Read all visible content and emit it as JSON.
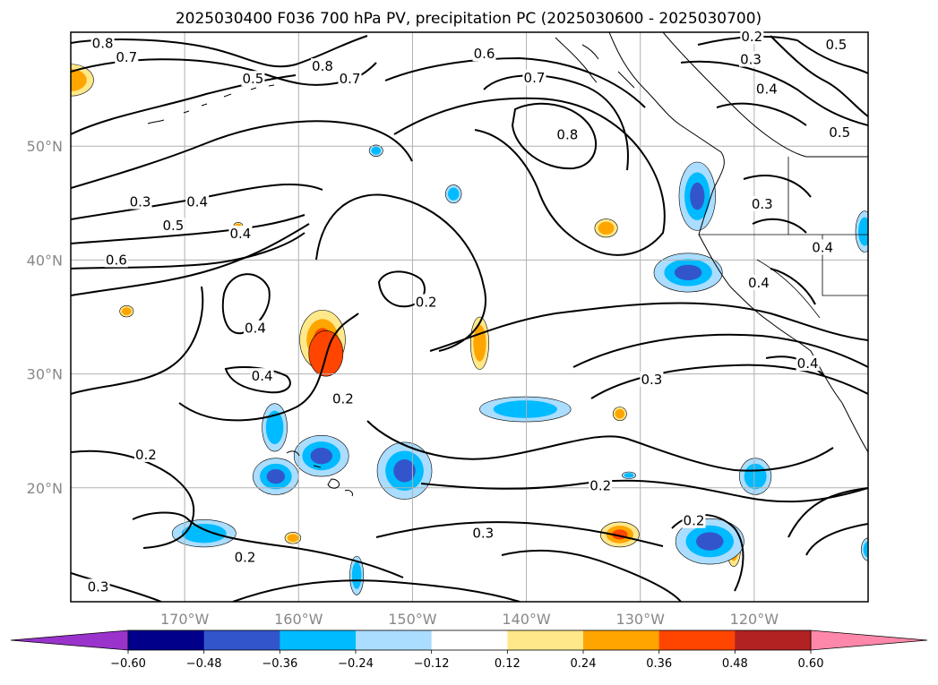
{
  "chart_data": {
    "type": "contour-map",
    "title": "2025030400 F036 700 hPa PV, precipitation PC (2025030600 - 2025030700)",
    "lon_range": [
      -180,
      -110
    ],
    "lat_range": [
      10,
      60
    ],
    "x_ticks": [
      {
        "value": -170,
        "label": "170°W"
      },
      {
        "value": -160,
        "label": "160°W"
      },
      {
        "value": -150,
        "label": "150°W"
      },
      {
        "value": -140,
        "label": "140°W"
      },
      {
        "value": -130,
        "label": "130°W"
      },
      {
        "value": -120,
        "label": "120°W"
      }
    ],
    "y_ticks": [
      {
        "value": 20,
        "label": "20°N"
      },
      {
        "value": 30,
        "label": "30°N"
      },
      {
        "value": 40,
        "label": "40°N"
      },
      {
        "value": 50,
        "label": "50°N"
      }
    ],
    "grid": true,
    "colorbar": {
      "levels": [
        -0.6,
        -0.48,
        -0.36,
        -0.24,
        -0.12,
        0.12,
        0.24,
        0.36,
        0.48,
        0.6
      ],
      "labels": [
        "−0.60",
        "−0.48",
        "−0.36",
        "−0.24",
        "−0.12",
        "0.12",
        "0.24",
        "0.36",
        "0.48",
        "0.60"
      ],
      "under_color": "#9933cc",
      "over_color": "#ff88aa",
      "colors": [
        "#00008b",
        "#3355cc",
        "#00bbff",
        "#aaddff",
        "#ffffff",
        "#ffe88a",
        "#ffa500",
        "#ff4500",
        "#b22222"
      ]
    },
    "pv_contour_labels": [
      {
        "text": "0.8",
        "lon": -177.2,
        "lat": 59.0
      },
      {
        "text": "0.7",
        "lon": -175.1,
        "lat": 57.8
      },
      {
        "text": "0.8",
        "lon": -157.9,
        "lat": 57.0
      },
      {
        "text": "0.5",
        "lon": -164.0,
        "lat": 55.9
      },
      {
        "text": "0.7",
        "lon": -155.5,
        "lat": 55.9
      },
      {
        "text": "0.6",
        "lon": -143.7,
        "lat": 58.1
      },
      {
        "text": "0.7",
        "lon": -139.3,
        "lat": 56.0
      },
      {
        "text": "0.8",
        "lon": -136.4,
        "lat": 51.0
      },
      {
        "text": "0.2",
        "lon": -120.2,
        "lat": 59.6
      },
      {
        "text": "0.3",
        "lon": -120.3,
        "lat": 57.6
      },
      {
        "text": "0.4",
        "lon": -118.9,
        "lat": 55.0
      },
      {
        "text": "0.5",
        "lon": -112.8,
        "lat": 58.9
      },
      {
        "text": "0.5",
        "lon": -112.5,
        "lat": 51.2
      },
      {
        "text": "0.4",
        "lon": -114.0,
        "lat": 41.1
      },
      {
        "text": "0.3",
        "lon": -119.3,
        "lat": 44.9
      },
      {
        "text": "0.4",
        "lon": -119.6,
        "lat": 38.0
      },
      {
        "text": "0.4",
        "lon": -115.3,
        "lat": 30.9
      },
      {
        "text": "0.3",
        "lon": -173.9,
        "lat": 45.1
      },
      {
        "text": "0.4",
        "lon": -168.9,
        "lat": 45.1
      },
      {
        "text": "0.5",
        "lon": -171.0,
        "lat": 43.0
      },
      {
        "text": "0.4",
        "lon": -165.1,
        "lat": 42.3
      },
      {
        "text": "0.6",
        "lon": -176.0,
        "lat": 40.0
      },
      {
        "text": "0.2",
        "lon": -148.8,
        "lat": 36.3
      },
      {
        "text": "0.4",
        "lon": -163.8,
        "lat": 34.0
      },
      {
        "text": "0.4",
        "lon": -163.2,
        "lat": 29.8
      },
      {
        "text": "0.2",
        "lon": -156.1,
        "lat": 27.8
      },
      {
        "text": "0.2",
        "lon": -173.4,
        "lat": 22.9
      },
      {
        "text": "0.3",
        "lon": -129.0,
        "lat": 29.5
      },
      {
        "text": "0.2",
        "lon": -133.5,
        "lat": 20.2
      },
      {
        "text": "0.2",
        "lon": -125.3,
        "lat": 17.1
      },
      {
        "text": "0.3",
        "lon": -143.8,
        "lat": 16.0
      },
      {
        "text": "0.2",
        "lon": -164.7,
        "lat": 13.9
      },
      {
        "text": "0.3",
        "lon": -177.6,
        "lat": 11.3
      }
    ],
    "precip_regions": [
      {
        "lon": -180,
        "lat": 55.8,
        "rlon": 2.0,
        "rlat": 1.4,
        "colors": [
          "#ffe88a",
          "#ffa500"
        ]
      },
      {
        "lon": -175.1,
        "lat": 35.5,
        "rlon": 0.6,
        "rlat": 0.5,
        "colors": [
          "#ffe88a",
          "#ffa500"
        ]
      },
      {
        "lon": -157.9,
        "lat": 33.0,
        "rlon": 2.0,
        "rlat": 2.6,
        "colors": [
          "#ffe88a",
          "#ffa500",
          "#ff4500"
        ]
      },
      {
        "lon": -157.6,
        "lat": 31.8,
        "rlon": 1.5,
        "rlat": 2.0,
        "colors": [
          "#ff4500"
        ]
      },
      {
        "lon": -160.5,
        "lat": 15.6,
        "rlon": 0.7,
        "rlat": 0.5,
        "colors": [
          "#ffe88a",
          "#ffa500"
        ]
      },
      {
        "lon": -144.1,
        "lat": 32.7,
        "rlon": 0.8,
        "rlat": 2.3,
        "colors": [
          "#ffe88a",
          "#ffa500"
        ]
      },
      {
        "lon": -133.0,
        "lat": 42.8,
        "rlon": 1.0,
        "rlat": 0.8,
        "colors": [
          "#ffe88a",
          "#ffa500"
        ]
      },
      {
        "lon": -131.8,
        "lat": 26.5,
        "rlon": 0.6,
        "rlat": 0.6,
        "colors": [
          "#ffe88a",
          "#ffa500"
        ]
      },
      {
        "lon": -131.8,
        "lat": 15.9,
        "rlon": 1.7,
        "rlat": 1.1,
        "colors": [
          "#ffe88a",
          "#ffa500",
          "#ff4500"
        ]
      },
      {
        "lon": -121.8,
        "lat": 14.7,
        "rlon": 0.6,
        "rlat": 1.6,
        "colors": [
          "#ffe88a",
          "#ffa500"
        ]
      },
      {
        "lon": -153.2,
        "lat": 49.6,
        "rlon": 0.6,
        "rlat": 0.5,
        "colors": [
          "#aaddff",
          "#00bbff"
        ]
      },
      {
        "lon": -146.4,
        "lat": 45.8,
        "rlon": 0.7,
        "rlat": 0.8,
        "colors": [
          "#aaddff",
          "#00bbff"
        ]
      },
      {
        "lon": -165.3,
        "lat": 43.0,
        "rlon": 0.4,
        "rlat": 0.3,
        "colors": [
          "#ffe88a",
          "#ffa500"
        ]
      },
      {
        "lon": -125.0,
        "lat": 45.6,
        "rlon": 1.6,
        "rlat": 3.0,
        "colors": [
          "#aaddff",
          "#00bbff",
          "#3355cc"
        ]
      },
      {
        "lon": -125.8,
        "lat": 38.9,
        "rlon": 3.0,
        "rlat": 1.7,
        "colors": [
          "#aaddff",
          "#00bbff",
          "#3355cc"
        ]
      },
      {
        "lon": -110.3,
        "lat": 42.5,
        "rlon": 0.8,
        "rlat": 1.8,
        "colors": [
          "#aaddff",
          "#00bbff"
        ]
      },
      {
        "lon": -140.1,
        "lat": 26.9,
        "rlon": 4.0,
        "rlat": 1.1,
        "colors": [
          "#aaddff",
          "#00bbff"
        ]
      },
      {
        "lon": -162.1,
        "lat": 25.3,
        "rlon": 1.1,
        "rlat": 2.1,
        "colors": [
          "#aaddff",
          "#00bbff"
        ]
      },
      {
        "lon": -158.0,
        "lat": 22.8,
        "rlon": 2.4,
        "rlat": 1.8,
        "colors": [
          "#aaddff",
          "#00bbff",
          "#3355cc"
        ]
      },
      {
        "lon": -162.0,
        "lat": 21.0,
        "rlon": 2.0,
        "rlat": 1.6,
        "colors": [
          "#aaddff",
          "#00bbff",
          "#3355cc"
        ]
      },
      {
        "lon": -150.7,
        "lat": 21.5,
        "rlon": 2.4,
        "rlat": 2.5,
        "colors": [
          "#aaddff",
          "#00bbff",
          "#3355cc"
        ]
      },
      {
        "lon": -168.3,
        "lat": 16.0,
        "rlon": 2.8,
        "rlat": 1.2,
        "colors": [
          "#aaddff",
          "#00bbff"
        ]
      },
      {
        "lon": -154.9,
        "lat": 12.3,
        "rlon": 0.6,
        "rlat": 1.7,
        "colors": [
          "#aaddff",
          "#00bbff"
        ]
      },
      {
        "lon": -123.9,
        "lat": 15.3,
        "rlon": 3.0,
        "rlat": 2.0,
        "colors": [
          "#aaddff",
          "#00bbff",
          "#3355cc"
        ]
      },
      {
        "lon": -119.9,
        "lat": 21.0,
        "rlon": 1.4,
        "rlat": 1.6,
        "colors": [
          "#aaddff",
          "#00bbff"
        ]
      },
      {
        "lon": -110.0,
        "lat": 14.6,
        "rlon": 0.6,
        "rlat": 1.0,
        "colors": [
          "#aaddff",
          "#00bbff"
        ]
      },
      {
        "lon": -131.0,
        "lat": 21.1,
        "rlon": 0.6,
        "rlat": 0.3,
        "colors": [
          "#aaddff",
          "#00bbff"
        ]
      }
    ]
  }
}
